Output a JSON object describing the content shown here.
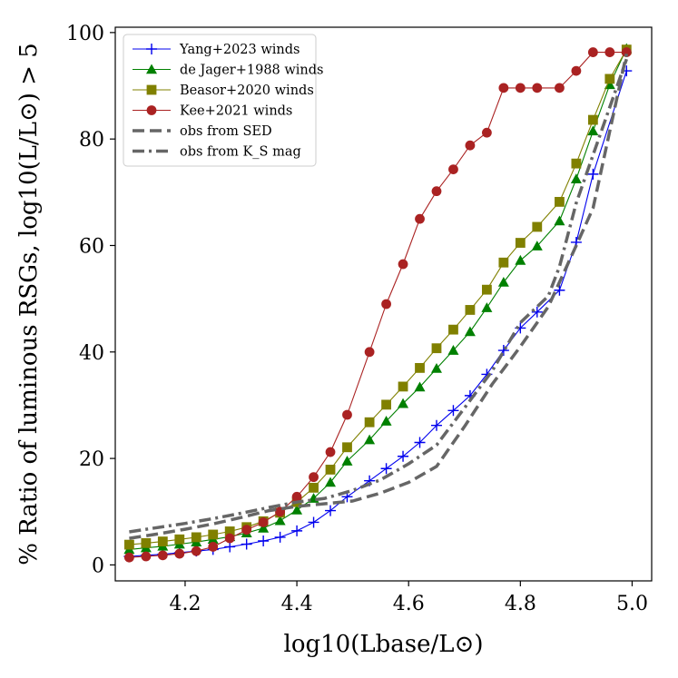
{
  "chart_data": {
    "type": "line",
    "title": "",
    "xlabel": "log10(Lbase/L⊙)",
    "ylabel": "% Ratio of luminous RSGs, log10(L/L⊙) > 5",
    "xlim": [
      4.075,
      5.035
    ],
    "ylim": [
      -3,
      101
    ],
    "xticks": [
      4.2,
      4.4,
      4.6,
      4.8,
      5.0
    ],
    "xtick_labels": [
      "4.2",
      "4.4",
      "4.6",
      "4.8",
      "5.0"
    ],
    "yticks": [
      0,
      20,
      40,
      60,
      80,
      100
    ],
    "ytick_labels": [
      "0",
      "20",
      "40",
      "60",
      "80",
      "100"
    ],
    "legend_position": "top-left",
    "series": [
      {
        "name": "Yang+2023 winds",
        "color": "#0000ee",
        "marker": "plus",
        "dash": "solid",
        "x": [
          4.1,
          4.13,
          4.16,
          4.19,
          4.22,
          4.25,
          4.28,
          4.31,
          4.34,
          4.37,
          4.4,
          4.43,
          4.46,
          4.49,
          4.53,
          4.56,
          4.59,
          4.62,
          4.65,
          4.68,
          4.71,
          4.74,
          4.77,
          4.8,
          4.83,
          4.87,
          4.9,
          4.93,
          4.99
        ],
        "values": [
          1.6,
          1.8,
          2.0,
          2.3,
          2.6,
          2.9,
          3.4,
          3.9,
          4.5,
          5.2,
          6.4,
          8.0,
          10.2,
          12.8,
          15.8,
          18.1,
          20.4,
          23.0,
          26.2,
          29.0,
          31.8,
          35.8,
          40.3,
          44.5,
          47.5,
          51.6,
          60.6,
          73.4,
          92.8
        ]
      },
      {
        "name": "de Jager+1988 winds",
        "color": "#008000",
        "marker": "triangle",
        "dash": "solid",
        "x": [
          4.1,
          4.13,
          4.16,
          4.19,
          4.22,
          4.25,
          4.28,
          4.31,
          4.34,
          4.37,
          4.4,
          4.43,
          4.46,
          4.49,
          4.53,
          4.56,
          4.59,
          4.62,
          4.65,
          4.68,
          4.71,
          4.74,
          4.77,
          4.8,
          4.83,
          4.87,
          4.9,
          4.93,
          4.96,
          4.99
        ],
        "values": [
          2.9,
          3.2,
          3.5,
          3.9,
          4.3,
          4.8,
          5.3,
          6.0,
          6.9,
          8.3,
          10.3,
          12.5,
          15.5,
          19.5,
          23.5,
          27.0,
          30.3,
          33.4,
          36.9,
          40.3,
          43.8,
          48.3,
          53.1,
          57.2,
          59.9,
          64.6,
          72.5,
          81.5,
          90.2,
          97.0
        ]
      },
      {
        "name": "Beasor+2020 winds",
        "color": "#808000",
        "marker": "square",
        "dash": "solid",
        "x": [
          4.1,
          4.13,
          4.16,
          4.19,
          4.22,
          4.25,
          4.28,
          4.31,
          4.34,
          4.37,
          4.4,
          4.43,
          4.46,
          4.49,
          4.53,
          4.56,
          4.59,
          4.62,
          4.65,
          4.68,
          4.71,
          4.74,
          4.77,
          4.8,
          4.83,
          4.87,
          4.9,
          4.93,
          4.96,
          4.99
        ],
        "values": [
          3.8,
          4.1,
          4.4,
          4.8,
          5.2,
          5.7,
          6.3,
          7.1,
          8.2,
          9.8,
          11.8,
          14.5,
          17.9,
          22.1,
          26.8,
          30.1,
          33.5,
          37.0,
          40.7,
          44.2,
          47.9,
          51.7,
          56.8,
          60.5,
          63.5,
          68.2,
          75.4,
          83.6,
          91.3,
          96.8
        ]
      },
      {
        "name": "Kee+2021 winds",
        "color": "#aa2222",
        "marker": "circle",
        "dash": "solid",
        "x": [
          4.1,
          4.13,
          4.16,
          4.19,
          4.22,
          4.25,
          4.28,
          4.31,
          4.34,
          4.37,
          4.4,
          4.43,
          4.46,
          4.49,
          4.53,
          4.56,
          4.59,
          4.62,
          4.65,
          4.68,
          4.71,
          4.74,
          4.77,
          4.8,
          4.83,
          4.87,
          4.9,
          4.93,
          4.96,
          4.99
        ],
        "values": [
          1.4,
          1.6,
          1.8,
          2.1,
          2.6,
          3.4,
          5.0,
          6.6,
          8.0,
          10.0,
          12.8,
          16.5,
          21.2,
          28.2,
          40.0,
          49.0,
          56.5,
          65.0,
          70.2,
          74.3,
          78.8,
          81.2,
          89.6,
          89.6,
          89.6,
          89.6,
          92.8,
          96.3,
          96.3,
          96.3
        ]
      },
      {
        "name": "obs from SED",
        "color": "#666666",
        "marker": "none",
        "dash": "dashed",
        "x": [
          4.1,
          4.15,
          4.2,
          4.25,
          4.3,
          4.35,
          4.4,
          4.45,
          4.5,
          4.55,
          4.6,
          4.65,
          4.7,
          4.75,
          4.8,
          4.85,
          4.9,
          4.93,
          4.99
        ],
        "values": [
          5.0,
          5.8,
          6.7,
          7.7,
          8.9,
          10.2,
          11.0,
          11.5,
          12.0,
          13.5,
          15.5,
          18.5,
          26.0,
          34.0,
          41.0,
          48.5,
          60.0,
          67.0,
          96.0
        ]
      },
      {
        "name": "obs from K_S mag",
        "color": "#666666",
        "marker": "none",
        "dash": "dashdot",
        "x": [
          4.1,
          4.15,
          4.2,
          4.25,
          4.3,
          4.35,
          4.4,
          4.45,
          4.5,
          4.55,
          4.6,
          4.65,
          4.7,
          4.75,
          4.8,
          4.82,
          4.85,
          4.87,
          4.9,
          4.93,
          4.99
        ],
        "values": [
          6.2,
          7.0,
          7.8,
          8.7,
          9.7,
          10.8,
          11.8,
          12.5,
          14.0,
          16.0,
          19.0,
          22.5,
          29.5,
          36.5,
          45.5,
          47.5,
          50.5,
          56.0,
          68.0,
          77.0,
          95.0
        ]
      }
    ]
  }
}
